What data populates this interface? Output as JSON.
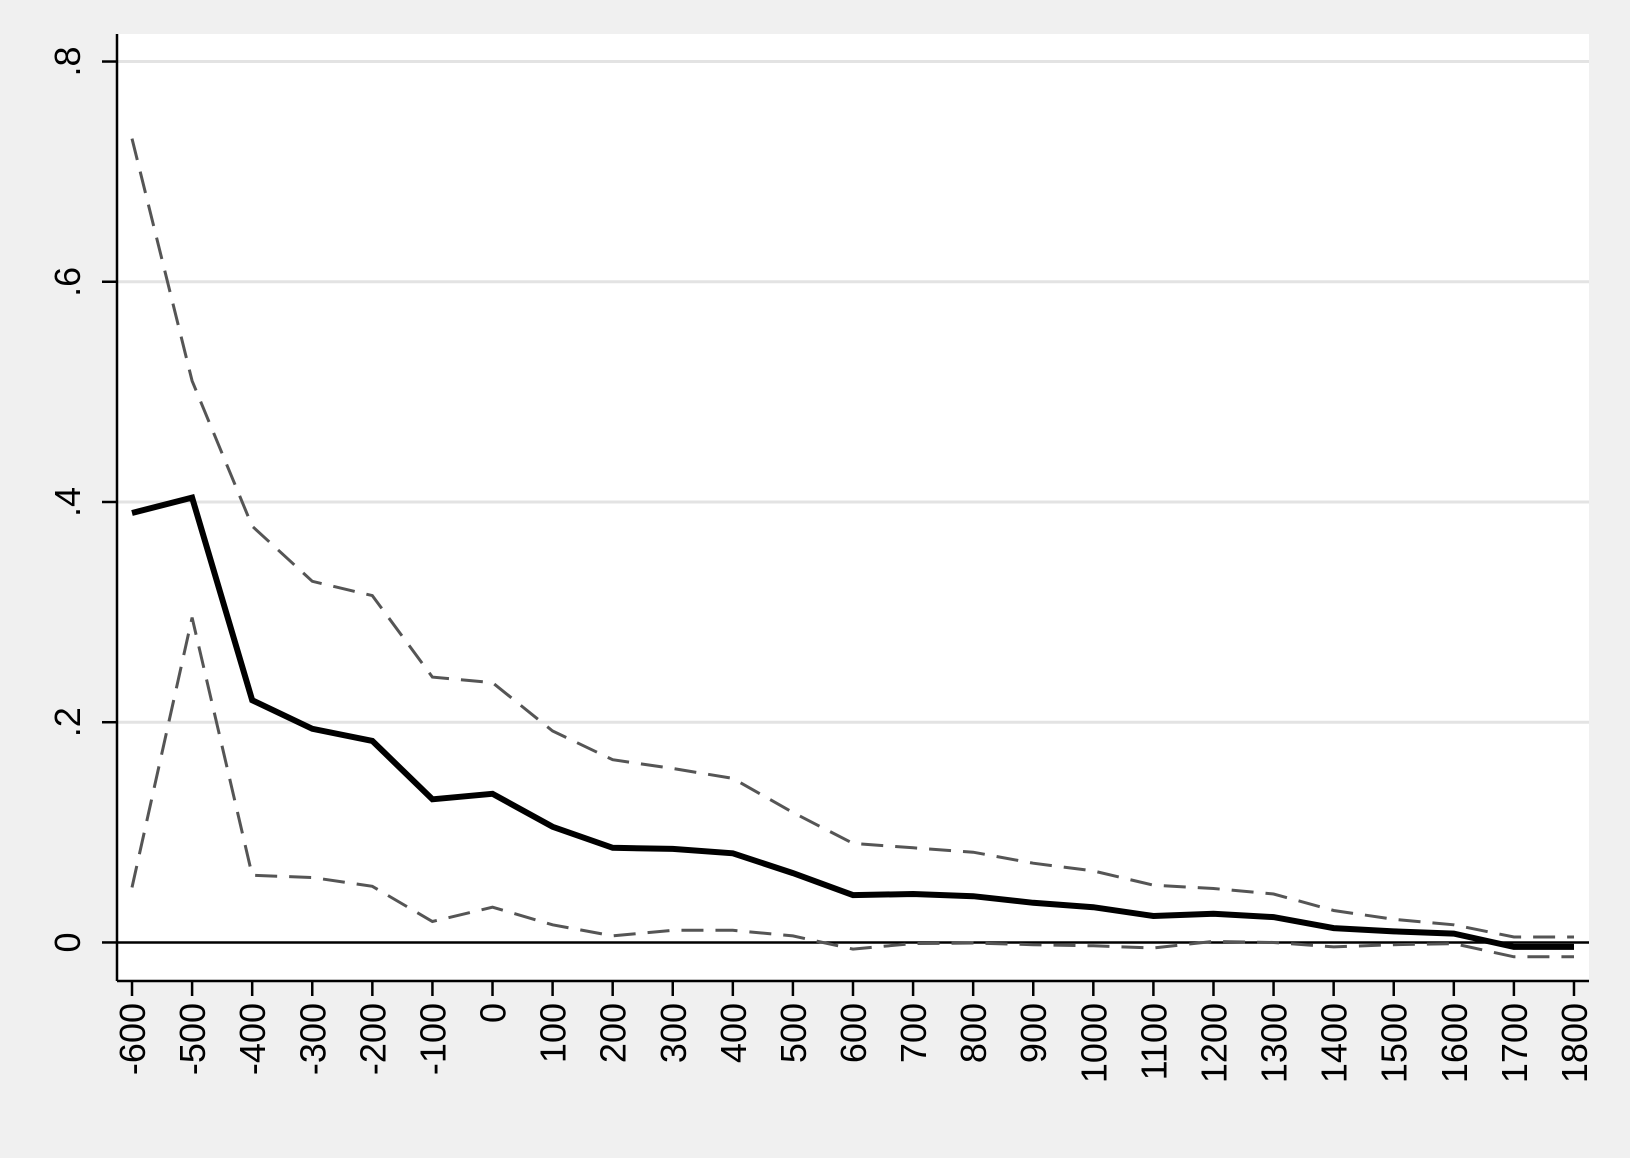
{
  "chart_data": {
    "type": "line",
    "title": "",
    "xlabel": "",
    "ylabel": "",
    "x": [
      -600,
      -500,
      -400,
      -300,
      -200,
      -100,
      0,
      100,
      200,
      300,
      400,
      500,
      600,
      700,
      800,
      900,
      1000,
      1100,
      1200,
      1300,
      1400,
      1500,
      1600,
      1700,
      1800
    ],
    "x_tick_labels": [
      "-600",
      "-500",
      "-400",
      "-300",
      "-200",
      "-100",
      "0",
      "100",
      "200",
      "300",
      "400",
      "500",
      "600",
      "700",
      "800",
      "900",
      "1000",
      "1100",
      "1200",
      "1300",
      "1400",
      "1500",
      "1600",
      "1700",
      "1800"
    ],
    "y_ticks": [
      0,
      0.2,
      0.4,
      0.6,
      0.8
    ],
    "y_tick_labels": [
      "0",
      ".2",
      ".4",
      ".6",
      ".8"
    ],
    "ylim": [
      -0.035,
      0.825
    ],
    "xlim": [
      -625,
      1825
    ],
    "grid": true,
    "reference_line_y": 0,
    "series": [
      {
        "role": "estimate",
        "style": "solid",
        "color": "#000000",
        "values": [
          0.39,
          0.404,
          0.22,
          0.194,
          0.183,
          0.13,
          0.135,
          0.105,
          0.086,
          0.085,
          0.081,
          0.063,
          0.043,
          0.044,
          0.042,
          0.036,
          0.032,
          0.024,
          0.026,
          0.023,
          0.013,
          0.01,
          0.008,
          -0.004,
          -0.004
        ]
      },
      {
        "role": "upper-bound",
        "style": "dashed",
        "color": "#555555",
        "values": [
          0.73,
          0.51,
          0.378,
          0.328,
          0.315,
          0.241,
          0.236,
          0.192,
          0.166,
          0.158,
          0.149,
          0.118,
          0.09,
          0.086,
          0.082,
          0.072,
          0.065,
          0.052,
          0.049,
          0.044,
          0.029,
          0.021,
          0.016,
          0.005,
          0.005
        ]
      },
      {
        "role": "lower-bound",
        "style": "dashed",
        "color": "#555555",
        "values": [
          0.05,
          0.295,
          0.061,
          0.059,
          0.051,
          0.019,
          0.032,
          0.016,
          0.006,
          0.011,
          0.011,
          0.006,
          -0.006,
          -0.001,
          -0.0005,
          -0.002,
          -0.003,
          -0.005,
          0.001,
          0.0,
          -0.004,
          -0.002,
          -0.001,
          -0.013,
          -0.013
        ]
      }
    ],
    "colors": {
      "background": "#f0f0f0",
      "plot_area": "#ffffff",
      "grid": "#e3e3e3",
      "axis": "#000000"
    }
  }
}
